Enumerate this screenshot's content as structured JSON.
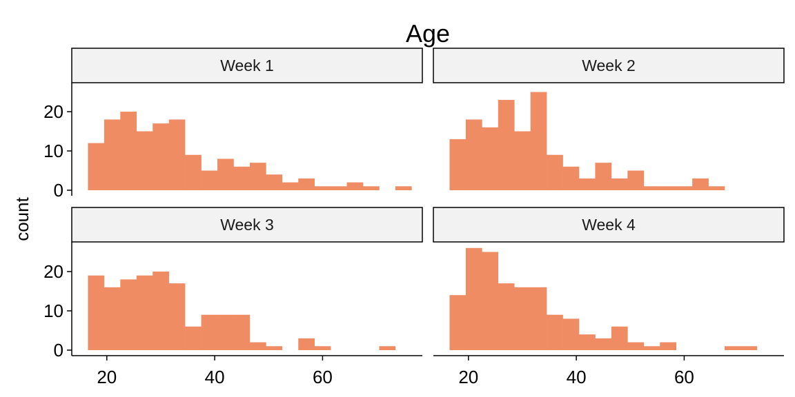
{
  "chart_data": {
    "type": "histogram",
    "title": "Age",
    "xlabel": "",
    "ylabel": "count",
    "bar_color": "#ef8c64",
    "bin_width": 3,
    "first_bin_start": 16.5,
    "xlim": [
      13.5,
      78.5
    ],
    "ylim": [
      0,
      27
    ],
    "x_ticks": [
      20,
      40,
      60
    ],
    "y_ticks": [
      0,
      10,
      20
    ],
    "facets": [
      {
        "label": "Week 1",
        "counts": [
          12,
          18,
          20,
          15,
          17,
          18,
          9,
          5,
          8,
          6,
          7,
          4,
          2,
          3,
          1,
          1,
          2,
          1,
          0,
          1
        ]
      },
      {
        "label": "Week 2",
        "counts": [
          13,
          18,
          16,
          23,
          15,
          25,
          9,
          6,
          3,
          7,
          3,
          5,
          1,
          1,
          1,
          3,
          1
        ]
      },
      {
        "label": "Week 3",
        "counts": [
          19,
          16,
          18,
          19,
          20,
          17,
          6,
          9,
          9,
          9,
          2,
          1,
          0,
          3,
          1,
          0,
          0,
          0,
          1
        ]
      },
      {
        "label": "Week 4",
        "counts": [
          14,
          26,
          25,
          17,
          16,
          16,
          9,
          8,
          4,
          3,
          6,
          2,
          1,
          2,
          0,
          0,
          0,
          1,
          1
        ]
      }
    ]
  }
}
